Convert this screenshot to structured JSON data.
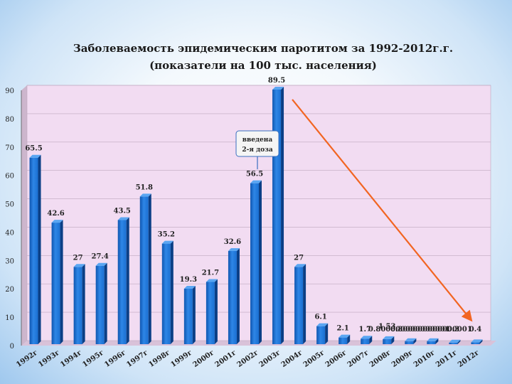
{
  "chart_data": {
    "type": "bar",
    "title": "Заболеваемость эпидемическим паротитом за 1992-2012г.г.",
    "subtitle": "(показатели на 100 тыс. населения)",
    "categories": [
      "1992г",
      "1993г",
      "1994г",
      "1995г",
      "1996г",
      "1997г",
      "1998г",
      "1999г",
      "2000г",
      "2001г",
      "2002г",
      "2003г",
      "2004г",
      "2005г",
      "2006г",
      "2007г",
      "2008г",
      "2009г",
      "2010г",
      "2011г",
      "2012г"
    ],
    "values": [
      65.5,
      42.6,
      27,
      27.4,
      43.5,
      51.8,
      35.2,
      19.3,
      21.7,
      32.6,
      56.5,
      89.5,
      27,
      6.1,
      2.1,
      1.7,
      1.53,
      0.8,
      0.8,
      0.3,
      0.4
    ],
    "value_labels": [
      "65.5",
      "42.6",
      "27",
      "27.4",
      "43.5",
      "51.8",
      "35.2",
      "19.3",
      "21.7",
      "32.6",
      "56.5",
      "89.5",
      "27",
      "6.1",
      "2.1",
      "1.7",
      "1.53",
      "0.800000000000001",
      "0.800000000000001",
      "0.3",
      "0.4"
    ],
    "yticks": [
      "0",
      "10",
      "20",
      "30",
      "40",
      "50",
      "60",
      "70",
      "80",
      "90"
    ],
    "ylim": [
      0,
      90
    ],
    "grid": true,
    "legend": "none",
    "annotation": {
      "text_line1": "введена",
      "text_line2": "2-я доза",
      "category": "2002г"
    },
    "trend_arrow": {
      "from_category": "2003г",
      "to_category": "2012г",
      "color": "#f26522"
    },
    "bar_color": "#1a6fd1",
    "bar_dark": "#0b3f86",
    "plot_background": "#f2dcf2"
  }
}
